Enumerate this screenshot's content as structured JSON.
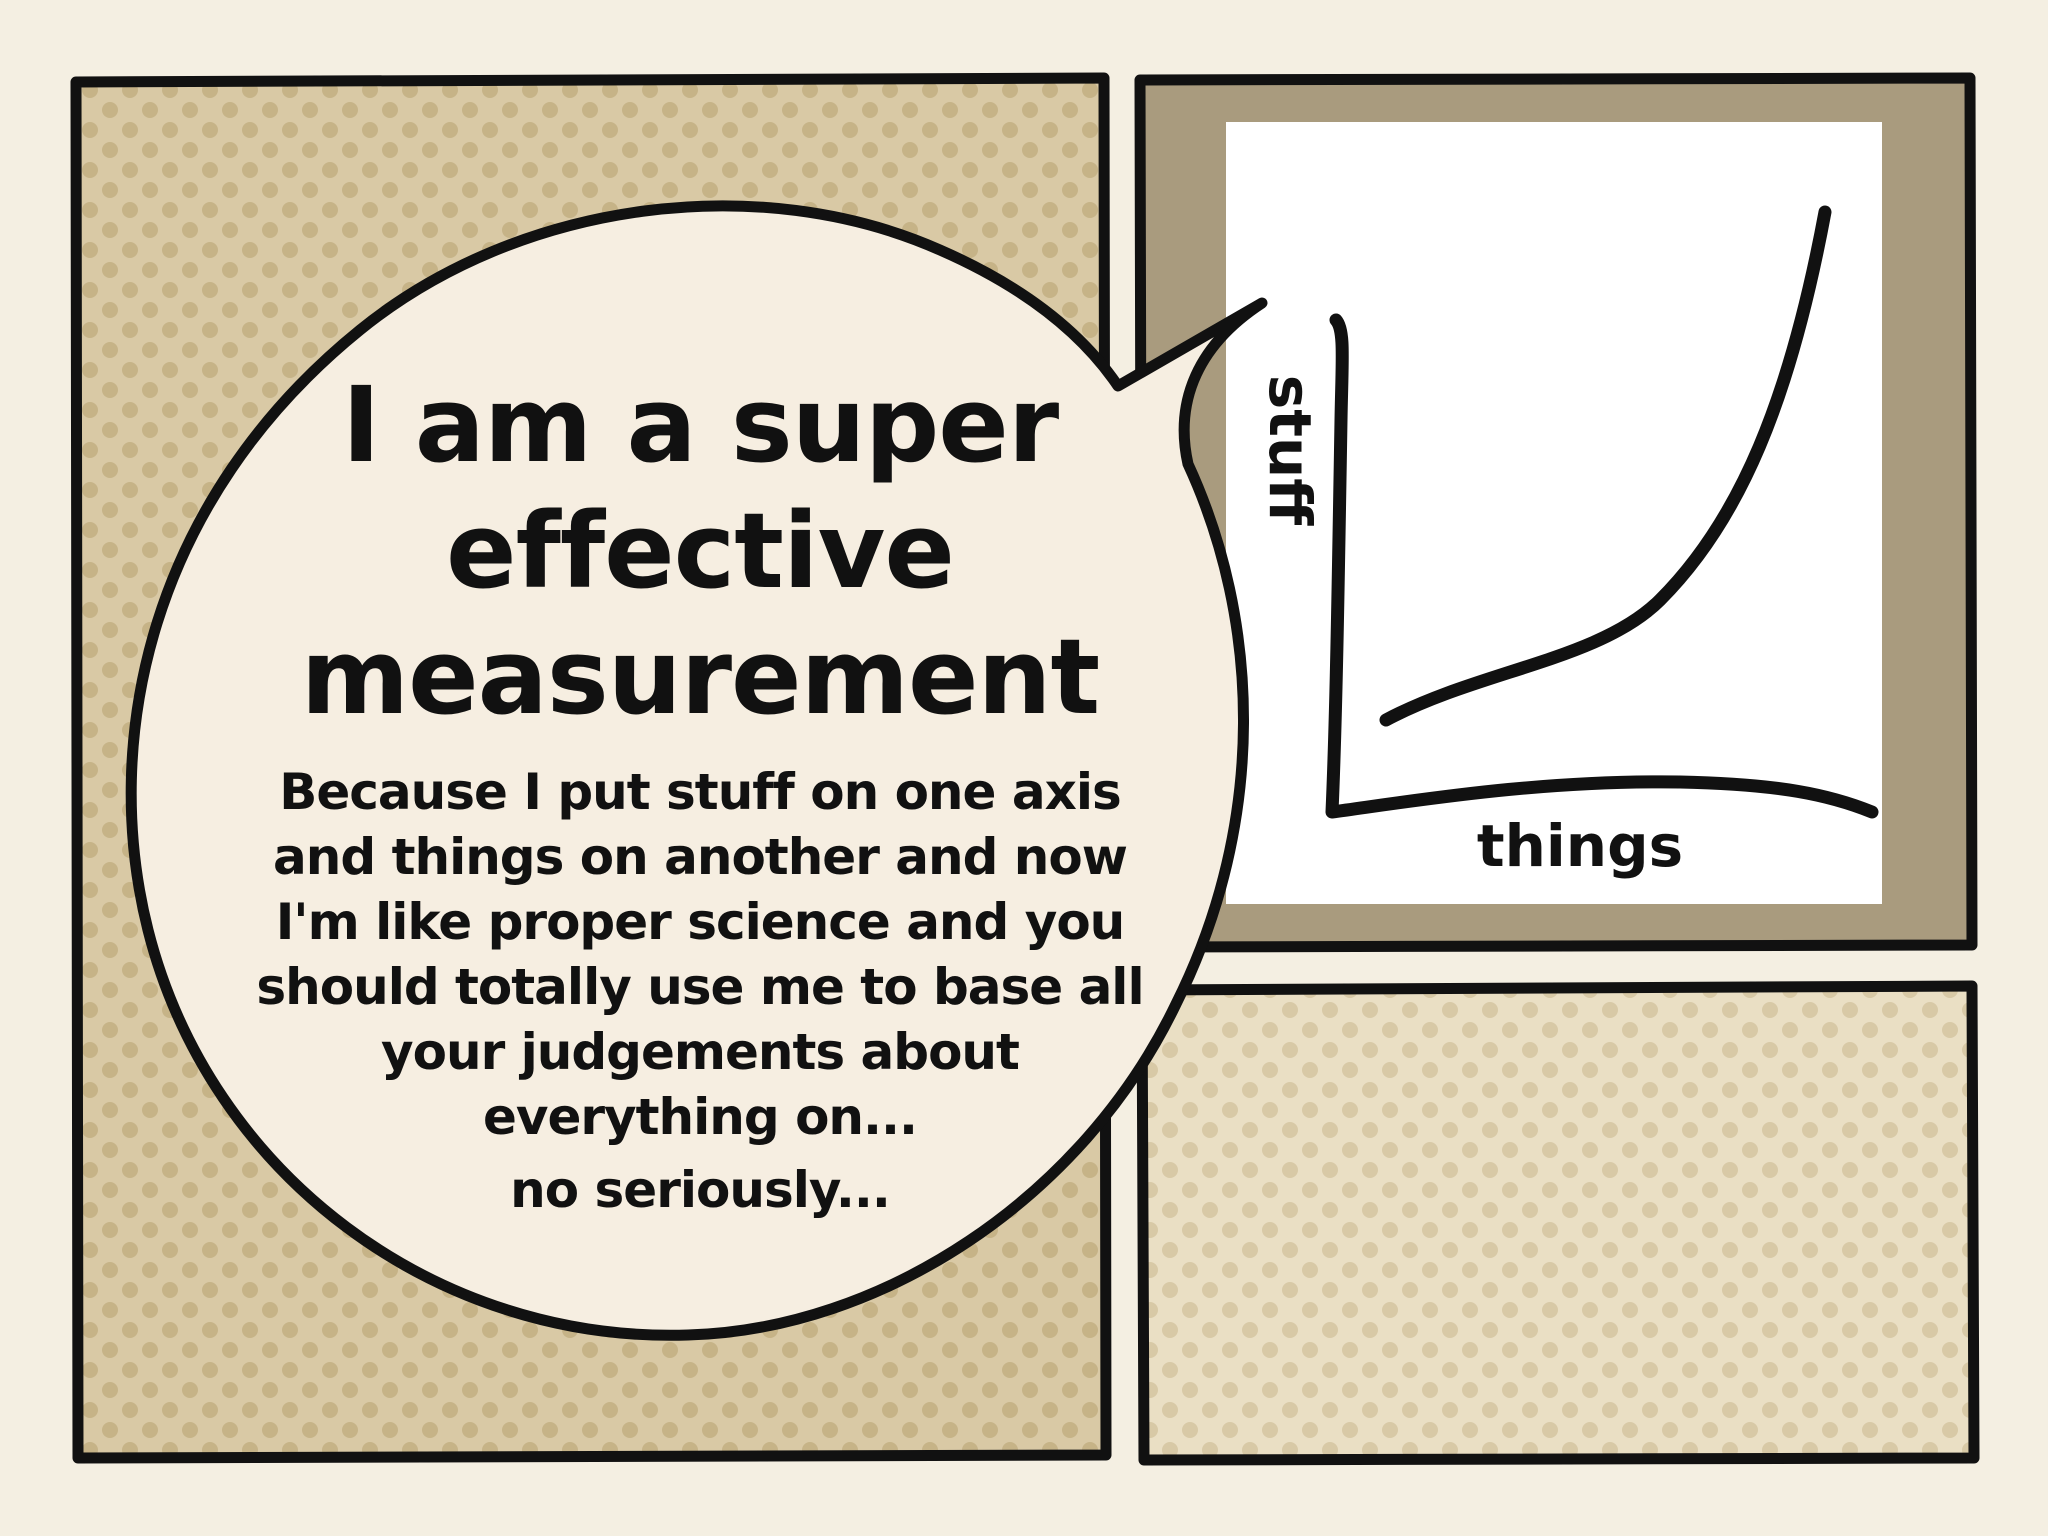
{
  "colors": {
    "background": "#f4efe2",
    "panel_tan": "#d7c7a2",
    "panel_light": "#e8dcc0",
    "dots": "#c8b68c",
    "chart_frame": "#a99b7e",
    "chart_paper": "#ffffff",
    "outline": "#111111",
    "bubble_fill": "#f6eee1"
  },
  "speech": {
    "title": "I am a super effective measurement",
    "body": "Because I put stuff on one axis and things on another and now I'm like proper science and you should totally use me to base all your judgements about everything on...",
    "note": "no seriously..."
  },
  "chart": {
    "x_label": "things",
    "y_label": "stuff"
  }
}
